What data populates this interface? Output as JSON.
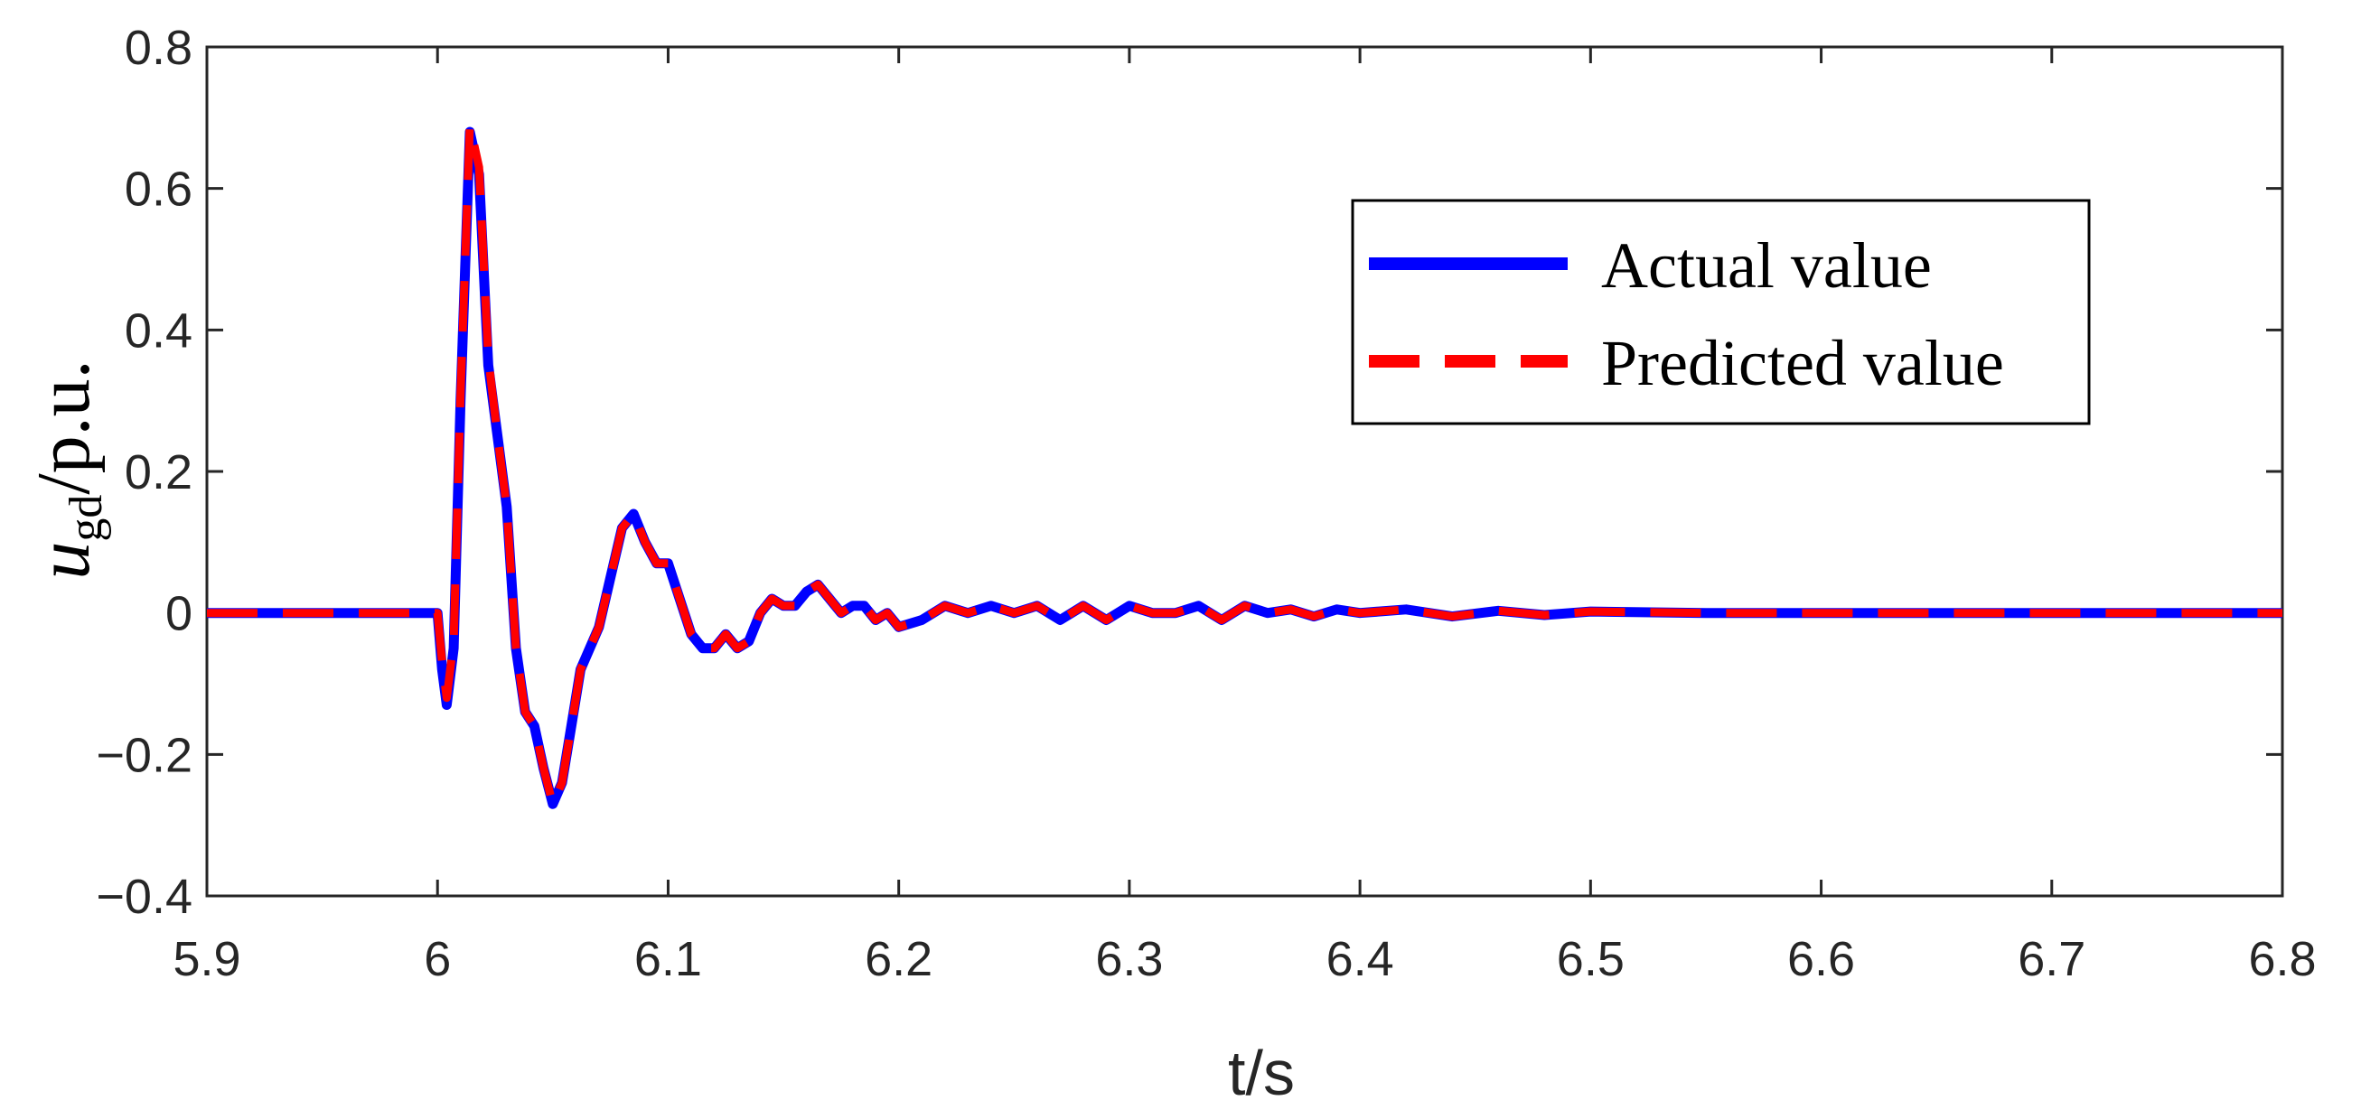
{
  "chart_data": {
    "type": "line",
    "xlabel": "t/s",
    "ylabel": {
      "var": "u",
      "sub": "gd",
      "unit": "/p.u."
    },
    "xlim": [
      5.9,
      6.8
    ],
    "ylim": [
      -0.4,
      0.8
    ],
    "xticks": [
      5.9,
      6.0,
      6.1,
      6.2,
      6.3,
      6.4,
      6.5,
      6.6,
      6.7,
      6.8
    ],
    "xtick_labels": [
      "5.9",
      "6",
      "6.1",
      "6.2",
      "6.3",
      "6.4",
      "6.5",
      "6.6",
      "6.7",
      "6.8"
    ],
    "yticks": [
      -0.4,
      -0.2,
      0,
      0.2,
      0.4,
      0.6,
      0.8
    ],
    "ytick_labels": [
      "−0.4",
      "−0.2",
      "0",
      "0.2",
      "0.4",
      "0.6",
      "0.8"
    ],
    "grid": false,
    "legend_position": "top-right",
    "series": [
      {
        "name": "Actual value",
        "color": "#0000ff",
        "style": "solid",
        "x": [
          5.9,
          5.95,
          6.0,
          6.002,
          6.004,
          6.007,
          6.01,
          6.014,
          6.018,
          6.022,
          6.026,
          6.03,
          6.034,
          6.038,
          6.042,
          6.046,
          6.05,
          6.054,
          6.058,
          6.062,
          6.066,
          6.07,
          6.075,
          6.08,
          6.085,
          6.09,
          6.095,
          6.1,
          6.105,
          6.11,
          6.115,
          6.12,
          6.125,
          6.13,
          6.135,
          6.14,
          6.145,
          6.15,
          6.155,
          6.16,
          6.165,
          6.17,
          6.175,
          6.18,
          6.185,
          6.19,
          6.195,
          6.2,
          6.21,
          6.22,
          6.23,
          6.24,
          6.25,
          6.26,
          6.27,
          6.28,
          6.29,
          6.3,
          6.31,
          6.32,
          6.33,
          6.34,
          6.35,
          6.36,
          6.37,
          6.38,
          6.39,
          6.4,
          6.42,
          6.44,
          6.46,
          6.48,
          6.5,
          6.55,
          6.6,
          6.65,
          6.7,
          6.75,
          6.8
        ],
        "y": [
          0,
          0,
          0,
          -0.08,
          -0.13,
          -0.05,
          0.3,
          0.68,
          0.62,
          0.35,
          0.25,
          0.15,
          -0.05,
          -0.14,
          -0.16,
          -0.22,
          -0.27,
          -0.24,
          -0.16,
          -0.08,
          -0.05,
          -0.02,
          0.05,
          0.12,
          0.14,
          0.1,
          0.07,
          0.07,
          0.02,
          -0.03,
          -0.05,
          -0.05,
          -0.03,
          -0.05,
          -0.04,
          0.0,
          0.02,
          0.01,
          0.01,
          0.03,
          0.04,
          0.02,
          0.0,
          0.01,
          0.01,
          -0.01,
          0.0,
          -0.02,
          -0.01,
          0.01,
          0.0,
          0.01,
          0.0,
          0.01,
          -0.01,
          0.01,
          -0.01,
          0.01,
          0.0,
          0.0,
          0.01,
          -0.01,
          0.01,
          0.0,
          0.005,
          -0.005,
          0.005,
          0.0,
          0.005,
          -0.005,
          0.003,
          -0.003,
          0.002,
          0.0,
          0.0,
          0.0,
          0.0,
          0.0,
          0.0
        ]
      },
      {
        "name": "Predicted value",
        "color": "#ff0000",
        "style": "dashed",
        "x": [
          5.9,
          5.95,
          6.0,
          6.002,
          6.004,
          6.007,
          6.01,
          6.014,
          6.018,
          6.022,
          6.026,
          6.03,
          6.034,
          6.038,
          6.042,
          6.046,
          6.05,
          6.054,
          6.058,
          6.062,
          6.066,
          6.07,
          6.075,
          6.08,
          6.085,
          6.09,
          6.095,
          6.1,
          6.105,
          6.11,
          6.115,
          6.12,
          6.125,
          6.13,
          6.135,
          6.14,
          6.145,
          6.15,
          6.155,
          6.16,
          6.165,
          6.17,
          6.175,
          6.18,
          6.185,
          6.19,
          6.195,
          6.2,
          6.21,
          6.22,
          6.23,
          6.24,
          6.25,
          6.26,
          6.27,
          6.28,
          6.29,
          6.3,
          6.31,
          6.32,
          6.33,
          6.34,
          6.35,
          6.36,
          6.37,
          6.38,
          6.39,
          6.4,
          6.42,
          6.44,
          6.46,
          6.48,
          6.5,
          6.55,
          6.6,
          6.65,
          6.7,
          6.75,
          6.8
        ],
        "y": [
          0,
          0,
          0,
          -0.07,
          -0.12,
          -0.04,
          0.31,
          0.69,
          0.63,
          0.36,
          0.25,
          0.15,
          -0.05,
          -0.14,
          -0.16,
          -0.22,
          -0.27,
          -0.24,
          -0.16,
          -0.08,
          -0.05,
          -0.02,
          0.05,
          0.12,
          0.14,
          0.1,
          0.07,
          0.07,
          0.02,
          -0.03,
          -0.05,
          -0.05,
          -0.03,
          -0.05,
          -0.04,
          0.0,
          0.02,
          0.01,
          0.01,
          0.03,
          0.04,
          0.02,
          0.0,
          0.01,
          0.01,
          -0.01,
          0.0,
          -0.02,
          -0.01,
          0.01,
          0.0,
          0.01,
          0.0,
          0.01,
          -0.01,
          0.01,
          -0.01,
          0.01,
          0.0,
          0.0,
          0.01,
          -0.01,
          0.01,
          0.0,
          0.005,
          -0.005,
          0.005,
          0.0,
          0.005,
          -0.005,
          0.003,
          -0.003,
          0.002,
          0.0,
          0.0,
          0.0,
          0.0,
          0.0,
          0.0
        ]
      }
    ]
  }
}
